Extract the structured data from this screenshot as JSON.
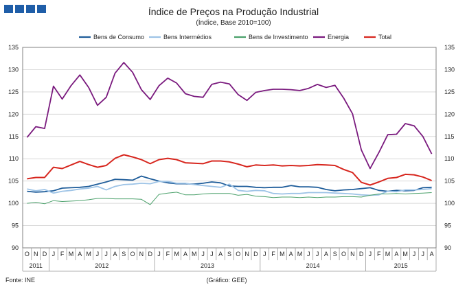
{
  "logo": {
    "name": "INE logo",
    "color": "#1f5ea8"
  },
  "chart_data": {
    "type": "line",
    "title": "Índice de Preços na Produção Industrial",
    "subtitle": "(Índice, Base 2010=100)",
    "xlabel": "",
    "ylabel": "",
    "ylim": [
      90,
      135
    ],
    "yticks": [
      90,
      95,
      100,
      105,
      110,
      115,
      120,
      125,
      130,
      135
    ],
    "grid": true,
    "legend_position": "top",
    "months": [
      "O",
      "N",
      "D",
      "J",
      "F",
      "M",
      "A",
      "M",
      "J",
      "J",
      "A",
      "S",
      "O",
      "N",
      "D",
      "J",
      "F",
      "M",
      "A",
      "M",
      "J",
      "J",
      "A",
      "S",
      "O",
      "N",
      "D",
      "J",
      "F",
      "M",
      "A",
      "M",
      "J",
      "J",
      "A",
      "S",
      "O",
      "N",
      "D",
      "J",
      "F",
      "M",
      "A",
      "M",
      "J",
      "J",
      "A"
    ],
    "years": [
      {
        "label": "2011",
        "start": 0,
        "end": 2
      },
      {
        "label": "2012",
        "start": 3,
        "end": 14
      },
      {
        "label": "2013",
        "start": 15,
        "end": 26
      },
      {
        "label": "2014",
        "start": 27,
        "end": 38
      },
      {
        "label": "2015",
        "start": 39,
        "end": 46
      }
    ],
    "series": [
      {
        "name": "Bens de Consumo",
        "color": "#1f5d9a",
        "values": [
          102.7,
          102.5,
          102.6,
          102.8,
          103.4,
          103.5,
          103.6,
          103.8,
          104.3,
          104.8,
          105.4,
          105.3,
          105.2,
          106.1,
          105.5,
          105.0,
          104.6,
          104.4,
          104.4,
          104.3,
          104.5,
          104.8,
          104.6,
          103.9,
          103.8,
          103.8,
          103.6,
          103.5,
          103.6,
          103.6,
          104.0,
          103.7,
          103.7,
          103.6,
          103.1,
          102.8,
          103.0,
          103.1,
          103.3,
          103.5,
          102.9,
          102.7,
          102.9,
          102.8,
          102.9,
          103.5,
          103.6
        ]
      },
      {
        "name": "Bens Intermédios",
        "color": "#9dc3e6",
        "values": [
          103.2,
          102.8,
          103.1,
          102.3,
          102.7,
          102.9,
          103.2,
          103.4,
          103.8,
          103.0,
          103.8,
          104.2,
          104.3,
          104.5,
          104.4,
          104.9,
          104.9,
          104.5,
          104.5,
          104.2,
          104.0,
          103.8,
          103.6,
          104.3,
          102.9,
          102.7,
          102.9,
          102.8,
          102.2,
          102.1,
          102.2,
          102.2,
          102.4,
          102.4,
          102.4,
          102.3,
          102.2,
          102.1,
          101.9,
          101.8,
          101.9,
          102.7,
          102.6,
          103.0,
          103.0,
          103.1,
          103.3
        ]
      },
      {
        "name": "Bens de Investimento",
        "color": "#4aa06a",
        "values": [
          100.0,
          100.2,
          99.9,
          100.6,
          100.4,
          100.5,
          100.6,
          100.8,
          101.1,
          101.1,
          101.0,
          101.0,
          101.0,
          100.9,
          99.7,
          102.0,
          102.3,
          102.5,
          101.9,
          101.9,
          102.1,
          102.2,
          102.2,
          102.2,
          101.8,
          102.0,
          101.6,
          101.5,
          101.3,
          101.4,
          101.4,
          101.3,
          101.4,
          101.3,
          101.4,
          101.4,
          101.5,
          101.5,
          101.4,
          101.8,
          102.1,
          102.1,
          102.2,
          102.1,
          102.2,
          102.3,
          102.4
        ]
      },
      {
        "name": "Energia",
        "color": "#7a1a7e",
        "values": [
          114.8,
          117.2,
          116.8,
          126.3,
          123.4,
          126.4,
          128.8,
          126.0,
          122.0,
          123.8,
          129.2,
          131.6,
          129.4,
          125.5,
          123.3,
          126.4,
          128.1,
          127.0,
          124.6,
          124.0,
          123.8,
          126.7,
          127.2,
          126.8,
          124.4,
          123.1,
          124.9,
          125.3,
          125.6,
          125.6,
          125.5,
          125.3,
          125.8,
          126.7,
          126.0,
          126.5,
          123.6,
          120.1,
          112.0,
          107.8,
          111.4,
          115.4,
          115.5,
          117.9,
          117.4,
          115.0,
          111.1
        ]
      },
      {
        "name": "Total",
        "color": "#d7261e",
        "values": [
          105.5,
          105.8,
          105.8,
          108.1,
          107.8,
          108.6,
          109.4,
          108.7,
          108.1,
          108.5,
          110.1,
          110.9,
          110.4,
          109.8,
          108.9,
          109.8,
          110.1,
          109.8,
          109.1,
          109.0,
          108.9,
          109.5,
          109.5,
          109.3,
          108.8,
          108.2,
          108.6,
          108.5,
          108.6,
          108.4,
          108.5,
          108.4,
          108.5,
          108.7,
          108.6,
          108.5,
          107.6,
          106.9,
          104.7,
          104.1,
          104.8,
          105.6,
          105.8,
          106.5,
          106.4,
          105.9,
          105.1
        ]
      }
    ]
  },
  "footer": {
    "source": "Fonte: INE",
    "credit": "(Gráfico: GEE)"
  }
}
